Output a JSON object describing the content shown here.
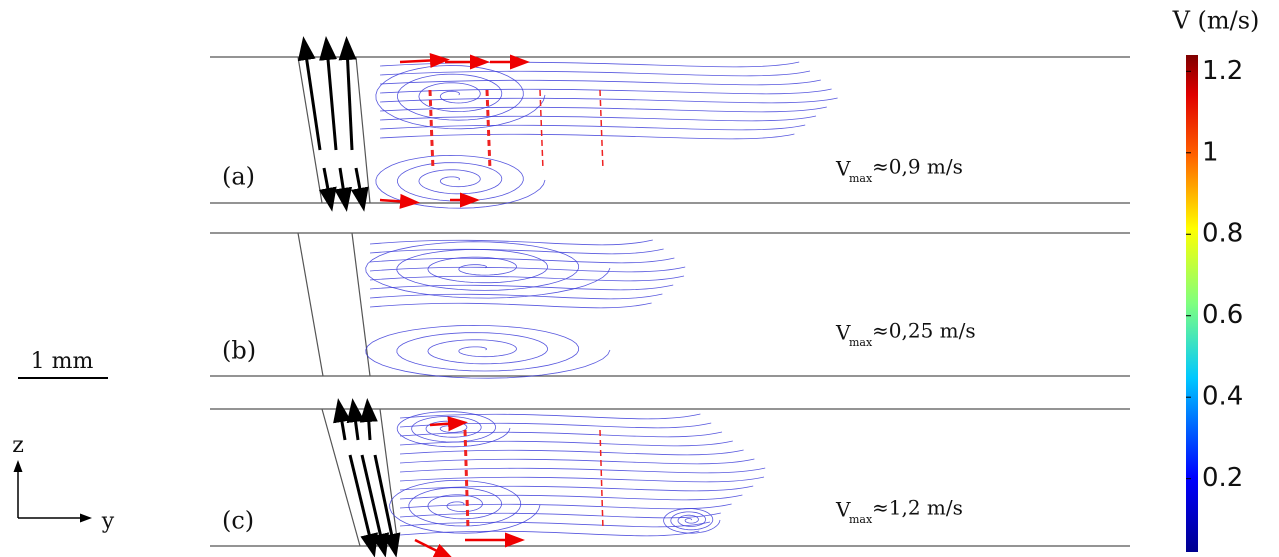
{
  "figure": {
    "panels": [
      {
        "label": "(a)",
        "symbol": "V",
        "subscript": "max",
        "value": "≈0,9 m/s"
      },
      {
        "label": "(b)",
        "symbol": "V",
        "subscript": "max",
        "value": "≈0,25 m/s"
      },
      {
        "label": "(c)",
        "symbol": "V",
        "subscript": "max",
        "value": "≈1,2 m/s"
      }
    ],
    "scale_bar": "1 mm",
    "axes": {
      "vertical": "z",
      "horizontal": "y"
    },
    "colorbar": {
      "title": "V (m/s)",
      "lim": [
        0.02,
        1.24
      ],
      "ticks": [
        0.2,
        0.4,
        0.6,
        0.8,
        1,
        1.2
      ]
    }
  }
}
